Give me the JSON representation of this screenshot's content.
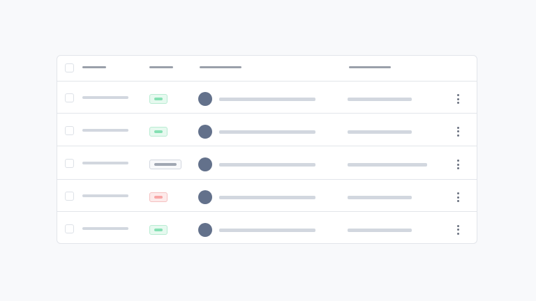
{
  "colors": {
    "success": "#85e0b3",
    "success_bg": "#e6f9ef",
    "success_border": "#b8ecd2",
    "danger": "#f8a5a5",
    "danger_bg": "#fdeaea",
    "danger_border": "#f5c0c0",
    "neutral": "#a0a7b3",
    "neutral_bg": "#f8f9fb",
    "neutral_border": "#d2d7df",
    "avatar": "#63718b"
  },
  "rows": [
    {
      "status": "success",
      "wide_last": false
    },
    {
      "status": "success",
      "wide_last": false
    },
    {
      "status": "neutral",
      "wide_last": true
    },
    {
      "status": "danger",
      "wide_last": false
    },
    {
      "status": "success",
      "wide_last": false
    }
  ]
}
